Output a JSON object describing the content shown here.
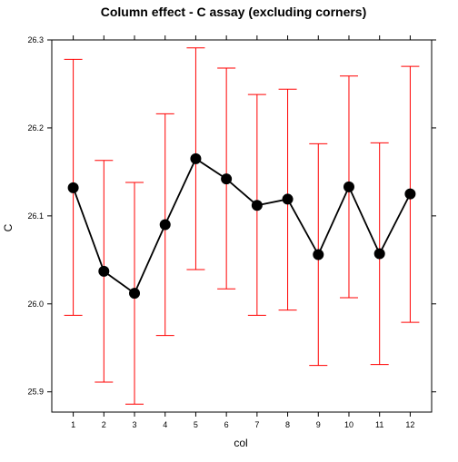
{
  "chart_data": {
    "type": "line",
    "title": "Column effect - C assay (excluding corners)",
    "xlabel": "col",
    "ylabel": "C",
    "x": [
      1,
      2,
      3,
      4,
      5,
      6,
      7,
      8,
      9,
      10,
      11,
      12
    ],
    "series": [
      {
        "values": [
          26.132,
          26.037,
          26.012,
          26.09,
          26.165,
          26.142,
          26.112,
          26.119,
          26.056,
          26.133,
          26.057,
          26.125
        ],
        "upper": [
          26.278,
          26.163,
          26.138,
          26.216,
          26.291,
          26.268,
          26.238,
          26.244,
          26.182,
          26.259,
          26.183,
          26.27
        ],
        "lower": [
          25.987,
          25.911,
          25.886,
          25.964,
          26.039,
          26.017,
          25.987,
          25.993,
          25.93,
          26.007,
          25.931,
          25.979
        ],
        "line_color": "#000000",
        "point_color": "#000000",
        "errorbar_color": "#ff0000"
      }
    ],
    "xticks": [
      1,
      2,
      3,
      4,
      5,
      6,
      7,
      8,
      9,
      10,
      11,
      12
    ],
    "yticks": [
      "25.9",
      "26.0",
      "26.1",
      "26.2",
      "26.3"
    ],
    "xlim": [
      0.3,
      12.7
    ],
    "ylim": [
      25.877,
      26.3
    ],
    "grid": false,
    "legend": "none"
  }
}
